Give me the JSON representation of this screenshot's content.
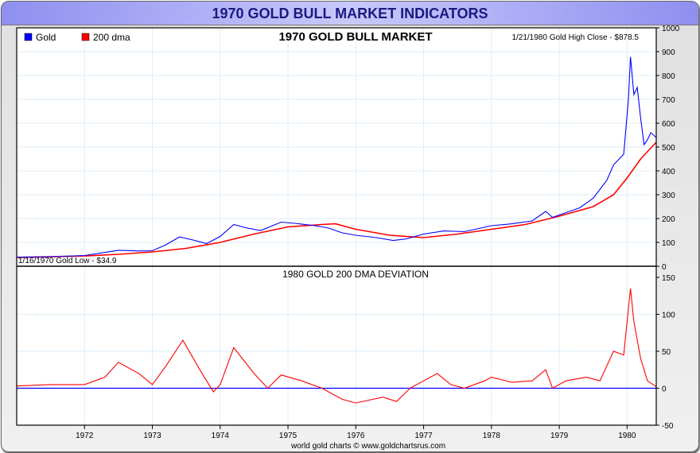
{
  "window_title": "1970 GOLD BULL MARKET INDICATORS",
  "footer": "world gold charts © www.goldchartsrus.com",
  "colors": {
    "gold": "#0000ff",
    "dma": "#ff0000",
    "zero_line": "#0000ff"
  },
  "chart_data": [
    {
      "type": "line",
      "title": "1970 GOLD BULL MARKET",
      "legend": [
        "Gold",
        "200 dma"
      ],
      "legend_placement": "top-left",
      "annotations": {
        "high": "1/21/1980 Gold High Close - $878.5",
        "low": "1/16/1970 Gold Low - $34.9"
      },
      "xlim": [
        1971.0,
        1980.43
      ],
      "ylim": [
        0,
        1000
      ],
      "yticks": [
        0,
        100,
        200,
        300,
        400,
        500,
        600,
        700,
        800,
        900,
        1000
      ],
      "grid": true,
      "series": [
        {
          "name": "Gold",
          "x": [
            1971.0,
            1971.5,
            1972.0,
            1972.3,
            1972.5,
            1972.8,
            1973.0,
            1973.2,
            1973.4,
            1973.6,
            1973.8,
            1974.0,
            1974.2,
            1974.4,
            1974.6,
            1974.9,
            1975.1,
            1975.4,
            1975.6,
            1975.8,
            1976.0,
            1976.3,
            1976.55,
            1976.75,
            1977.0,
            1977.3,
            1977.6,
            1978.0,
            1978.3,
            1978.6,
            1978.8,
            1978.9,
            1979.1,
            1979.3,
            1979.5,
            1979.7,
            1979.8,
            1979.95,
            1980.02,
            1980.05,
            1980.1,
            1980.15,
            1980.2,
            1980.25,
            1980.3,
            1980.35,
            1980.43
          ],
          "y": [
            38,
            40,
            45,
            58,
            67,
            64,
            65,
            90,
            123,
            110,
            95,
            125,
            175,
            160,
            150,
            185,
            180,
            170,
            160,
            140,
            130,
            120,
            108,
            115,
            135,
            148,
            145,
            170,
            178,
            190,
            230,
            205,
            225,
            245,
            285,
            360,
            425,
            470,
            700,
            878,
            720,
            750,
            620,
            510,
            530,
            560,
            540
          ]
        },
        {
          "name": "200 dma",
          "x": [
            1971.0,
            1972.0,
            1972.5,
            1973.0,
            1973.5,
            1974.0,
            1974.5,
            1975.0,
            1975.5,
            1975.7,
            1976.0,
            1976.5,
            1977.0,
            1977.5,
            1978.0,
            1978.5,
            1979.0,
            1979.5,
            1979.8,
            1980.0,
            1980.2,
            1980.43
          ],
          "y": [
            37,
            43,
            50,
            60,
            75,
            100,
            135,
            165,
            175,
            178,
            155,
            130,
            120,
            135,
            155,
            175,
            210,
            250,
            300,
            370,
            450,
            520
          ]
        }
      ]
    },
    {
      "type": "line",
      "title": "1980 GOLD 200 DMA DEVIATION",
      "xlim": [
        1971.0,
        1980.43
      ],
      "ylim": [
        -50,
        150
      ],
      "yticks": [
        -50,
        0,
        50,
        100,
        150
      ],
      "xticks": [
        "1972",
        "1973",
        "1974",
        "1975",
        "1976",
        "1977",
        "1978",
        "1979",
        "1980"
      ],
      "grid": true,
      "series": [
        {
          "name": "Deviation",
          "x": [
            1971.0,
            1971.5,
            1972.0,
            1972.3,
            1972.5,
            1972.8,
            1973.0,
            1973.2,
            1973.45,
            1973.7,
            1973.9,
            1974.0,
            1974.2,
            1974.5,
            1974.7,
            1974.9,
            1975.2,
            1975.5,
            1975.8,
            1976.0,
            1976.4,
            1976.6,
            1976.8,
            1977.0,
            1977.2,
            1977.4,
            1977.6,
            1977.9,
            1978.0,
            1978.3,
            1978.6,
            1978.8,
            1978.9,
            1979.1,
            1979.4,
            1979.6,
            1979.8,
            1979.95,
            1980.05,
            1980.1,
            1980.2,
            1980.3,
            1980.43
          ],
          "y": [
            3,
            5,
            5,
            15,
            35,
            20,
            5,
            30,
            65,
            25,
            -5,
            5,
            55,
            20,
            0,
            18,
            10,
            0,
            -15,
            -20,
            -12,
            -18,
            0,
            10,
            20,
            5,
            0,
            10,
            15,
            8,
            10,
            25,
            0,
            10,
            15,
            10,
            50,
            45,
            135,
            90,
            40,
            10,
            2
          ]
        }
      ]
    }
  ]
}
